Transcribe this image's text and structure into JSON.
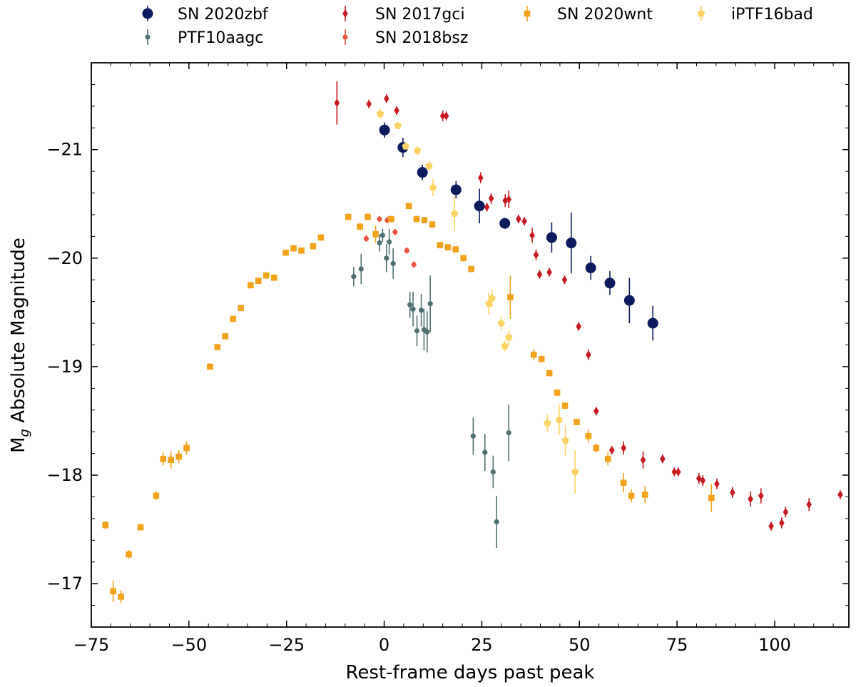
{
  "chart_data": {
    "type": "scatter",
    "title": "",
    "xlabel": "Rest-frame days past peak",
    "ylabel_main": "M",
    "ylabel_sub": "g",
    "ylabel_rest": " Absolute Magnitude",
    "xlim": [
      -75,
      119
    ],
    "ylim": [
      -16.6,
      -21.8
    ],
    "y_inverted": true,
    "grid": false,
    "legend_position": "top, above plot",
    "x_ticks": [
      -75,
      -50,
      -25,
      0,
      25,
      50,
      75,
      100
    ],
    "x_tick_labels": [
      "−75",
      "−50",
      "−25",
      "0",
      "25",
      "50",
      "75",
      "100"
    ],
    "y_ticks": [
      -17,
      -18,
      -19,
      -20,
      -21
    ],
    "y_tick_labels": [
      "−17",
      "−18",
      "−19",
      "−20",
      "−21"
    ],
    "series": [
      {
        "name": "SN 2020zbf",
        "color": "#0c1a5e",
        "marker": "circle-large",
        "points": [
          [
            0.1,
            -21.18,
            0.07
          ],
          [
            4.8,
            -21.02,
            0.09
          ],
          [
            9.8,
            -20.79,
            0.07
          ],
          [
            18.4,
            -20.63,
            0.08
          ],
          [
            24.4,
            -20.48,
            0.16
          ],
          [
            30.9,
            -20.32,
            0.05
          ],
          [
            42.9,
            -20.19,
            0.14
          ],
          [
            47.9,
            -20.14,
            0.28
          ],
          [
            52.9,
            -19.91,
            0.11
          ],
          [
            57.8,
            -19.77,
            0.11
          ],
          [
            62.8,
            -19.61,
            0.21
          ],
          [
            68.8,
            -19.4,
            0.16
          ]
        ]
      },
      {
        "name": "PTF10aagc",
        "color": "#4f7070",
        "marker": "circle-small",
        "points": [
          [
            -7.8,
            -19.83,
            0.09
          ],
          [
            -5.9,
            -19.9,
            0.14
          ],
          [
            -1.2,
            -20.14,
            0.08
          ],
          [
            -0.4,
            -20.21,
            0.06
          ],
          [
            0.6,
            -20.0,
            0.13
          ],
          [
            1.3,
            -20.15,
            0.12
          ],
          [
            2.3,
            -19.95,
            0.14
          ],
          [
            6.6,
            -19.57,
            0.12
          ],
          [
            7.4,
            -19.53,
            0.16
          ],
          [
            8.4,
            -19.33,
            0.14
          ],
          [
            9.5,
            -19.52,
            0.15
          ],
          [
            10.2,
            -19.34,
            0.19
          ],
          [
            11.0,
            -19.32,
            0.19
          ],
          [
            11.8,
            -19.58,
            0.26
          ],
          [
            22.8,
            -18.36,
            0.17
          ],
          [
            25.8,
            -18.21,
            0.17
          ],
          [
            27.9,
            -18.03,
            0.15
          ],
          [
            28.8,
            -17.57,
            0.24
          ],
          [
            31.9,
            -18.39,
            0.26
          ]
        ]
      },
      {
        "name": "SN 2017gci",
        "color": "#c81a22",
        "marker": "diamond",
        "points": [
          [
            -12.1,
            -21.43,
            0.2
          ],
          [
            -3.9,
            -21.42,
            0.04
          ],
          [
            0.6,
            -21.47,
            0.04
          ],
          [
            3.2,
            -21.36,
            0.04
          ],
          [
            15.0,
            -21.31,
            0.05
          ],
          [
            15.9,
            -21.31,
            0.04
          ],
          [
            24.7,
            -20.74,
            0.05
          ],
          [
            26.3,
            -20.47,
            0.04
          ],
          [
            27.4,
            -20.55,
            0.05
          ],
          [
            31.0,
            -20.53,
            0.06
          ],
          [
            31.9,
            -20.54,
            0.08
          ],
          [
            34.4,
            -20.36,
            0.04
          ],
          [
            35.9,
            -20.34,
            0.04
          ],
          [
            37.9,
            -20.21,
            0.07
          ],
          [
            38.9,
            -20.03,
            0.05
          ],
          [
            39.8,
            -19.85,
            0.04
          ],
          [
            42.3,
            -19.87,
            0.04
          ],
          [
            46.2,
            -19.8,
            0.04
          ],
          [
            49.8,
            -19.37,
            0.04
          ],
          [
            52.3,
            -19.11,
            0.05
          ],
          [
            54.3,
            -18.59,
            0.04
          ],
          [
            58.3,
            -18.23,
            0.04
          ],
          [
            61.3,
            -18.25,
            0.06
          ],
          [
            66.3,
            -18.14,
            0.08
          ],
          [
            71.3,
            -18.15,
            0.04
          ],
          [
            74.3,
            -18.03,
            0.04
          ],
          [
            75.3,
            -18.03,
            0.04
          ],
          [
            80.6,
            -17.97,
            0.05
          ],
          [
            81.6,
            -17.95,
            0.05
          ],
          [
            85.2,
            -17.92,
            0.05
          ],
          [
            89.2,
            -17.84,
            0.05
          ],
          [
            93.8,
            -17.78,
            0.07
          ],
          [
            96.5,
            -17.81,
            0.07
          ],
          [
            99.1,
            -17.53,
            0.04
          ],
          [
            101.8,
            -17.56,
            0.05
          ],
          [
            102.8,
            -17.66,
            0.05
          ],
          [
            108.8,
            -17.73,
            0.06
          ],
          [
            116.8,
            -17.82,
            0.04
          ]
        ]
      },
      {
        "name": "SN 2018bsz",
        "color": "#ef5340",
        "marker": "circle-small",
        "points": [
          [
            -4.6,
            -20.18,
            0.03
          ],
          [
            -1.2,
            -20.36,
            0.03
          ],
          [
            0.8,
            -20.35,
            0.03
          ],
          [
            2.8,
            -20.24,
            0.03
          ],
          [
            5.8,
            -20.07,
            0.03
          ],
          [
            7.6,
            -19.94,
            0.03
          ]
        ]
      },
      {
        "name": "SN 2020wnt",
        "color": "#f3a31b",
        "marker": "square",
        "points": [
          [
            -71.4,
            -17.54,
            0.04
          ],
          [
            -69.4,
            -16.93,
            0.1
          ],
          [
            -67.4,
            -16.88,
            0.06
          ],
          [
            -65.4,
            -17.27,
            0.04
          ],
          [
            -62.4,
            -17.52,
            0.03
          ],
          [
            -58.4,
            -17.81,
            0.04
          ],
          [
            -56.6,
            -18.15,
            0.06
          ],
          [
            -54.6,
            -18.14,
            0.08
          ],
          [
            -52.6,
            -18.17,
            0.06
          ],
          [
            -50.6,
            -18.25,
            0.06
          ],
          [
            -44.6,
            -19.0,
            0.03
          ],
          [
            -42.7,
            -19.18,
            0.03
          ],
          [
            -40.7,
            -19.28,
            0.03
          ],
          [
            -38.7,
            -19.44,
            0.03
          ],
          [
            -36.7,
            -19.54,
            0.03
          ],
          [
            -34.2,
            -19.75,
            0.03
          ],
          [
            -32.2,
            -19.79,
            0.03
          ],
          [
            -30.2,
            -19.84,
            0.03
          ],
          [
            -28.2,
            -19.82,
            0.03
          ],
          [
            -25.2,
            -20.05,
            0.03
          ],
          [
            -23.2,
            -20.09,
            0.03
          ],
          [
            -21.2,
            -20.07,
            0.03
          ],
          [
            -18.2,
            -20.11,
            0.03
          ],
          [
            -16.2,
            -20.19,
            0.03
          ],
          [
            -9.2,
            -20.38,
            0.03
          ],
          [
            -6.2,
            -20.29,
            0.03
          ],
          [
            -4.2,
            -20.38,
            0.03
          ],
          [
            -2.2,
            -20.22,
            0.08
          ],
          [
            1.8,
            -20.36,
            0.03
          ],
          [
            6.3,
            -20.48,
            0.03
          ],
          [
            8.3,
            -20.36,
            0.03
          ],
          [
            10.3,
            -20.35,
            0.03
          ],
          [
            12.3,
            -20.31,
            0.03
          ],
          [
            14.3,
            -20.12,
            0.03
          ],
          [
            16.3,
            -20.1,
            0.03
          ],
          [
            18.3,
            -20.08,
            0.03
          ],
          [
            20.3,
            -20.0,
            0.03
          ],
          [
            22.3,
            -19.9,
            0.03
          ],
          [
            32.3,
            -19.64,
            0.2
          ],
          [
            38.3,
            -19.11,
            0.05
          ],
          [
            40.3,
            -19.07,
            0.03
          ],
          [
            42.3,
            -18.94,
            0.03
          ],
          [
            44.3,
            -18.76,
            0.03
          ],
          [
            46.3,
            -18.64,
            0.03
          ],
          [
            49.3,
            -18.49,
            0.03
          ],
          [
            52.3,
            -18.36,
            0.06
          ],
          [
            54.3,
            -18.25,
            0.04
          ],
          [
            57.3,
            -18.15,
            0.06
          ],
          [
            61.3,
            -17.93,
            0.09
          ],
          [
            63.3,
            -17.81,
            0.06
          ],
          [
            66.8,
            -17.82,
            0.08
          ],
          [
            83.8,
            -17.79,
            0.13
          ]
        ]
      },
      {
        "name": "iPTF16bad",
        "color": "#fcd364",
        "marker": "pentagon",
        "points": [
          [
            -1.0,
            -21.33,
            0.05
          ],
          [
            3.5,
            -21.22,
            0.03
          ],
          [
            5.5,
            -21.03,
            0.03
          ],
          [
            8.5,
            -20.99,
            0.04
          ],
          [
            11.5,
            -20.85,
            0.04
          ],
          [
            12.5,
            -20.65,
            0.08
          ],
          [
            18.0,
            -20.41,
            0.16
          ],
          [
            26.8,
            -19.58,
            0.1
          ],
          [
            27.6,
            -19.63,
            0.08
          ],
          [
            30.0,
            -19.4,
            0.06
          ],
          [
            30.9,
            -19.19,
            0.05
          ],
          [
            31.9,
            -19.27,
            0.07
          ],
          [
            41.8,
            -18.48,
            0.08
          ],
          [
            44.8,
            -18.51,
            0.14
          ],
          [
            46.4,
            -18.32,
            0.14
          ],
          [
            48.9,
            -18.03,
            0.2
          ]
        ]
      }
    ]
  }
}
